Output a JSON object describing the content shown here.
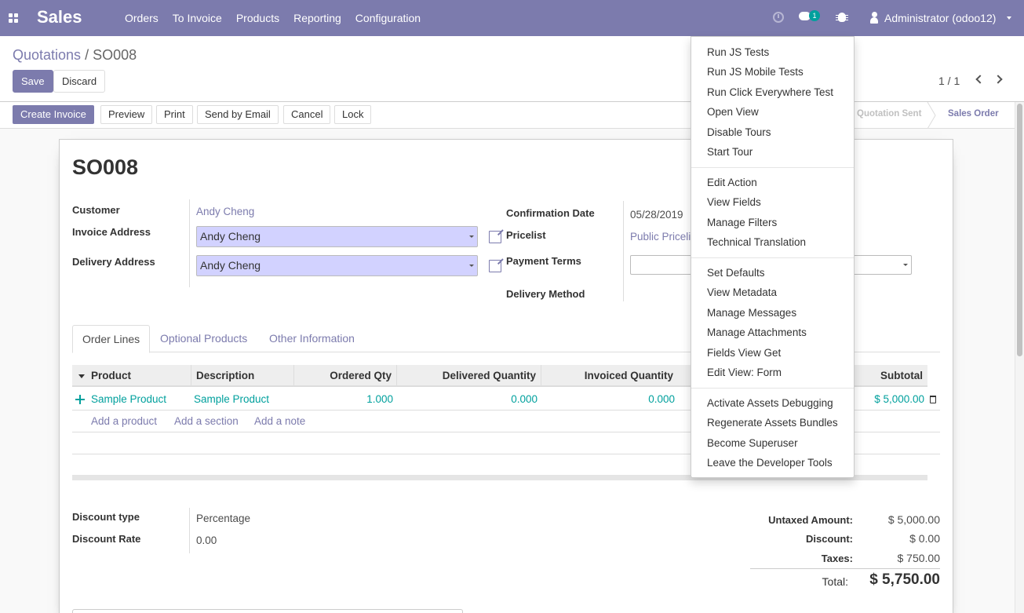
{
  "navbar": {
    "brand": "Sales",
    "menu": [
      "Orders",
      "To Invoice",
      "Products",
      "Reporting",
      "Configuration"
    ],
    "chat_count": "1",
    "user": "Administrator (odoo12)"
  },
  "breadcrumb": {
    "parent": "Quotations",
    "separator": "/",
    "current": "SO008"
  },
  "actions": {
    "save": "Save",
    "discard": "Discard"
  },
  "pager": {
    "value": "1 / 1"
  },
  "statusbar": {
    "buttons": [
      "Create Invoice",
      "Preview",
      "Print",
      "Send by Email",
      "Cancel",
      "Lock"
    ],
    "stages": [
      "Quotation Sent",
      "Sales Order"
    ],
    "active_stage": "Sales Order"
  },
  "form": {
    "title": "SO008",
    "customer_label": "Customer",
    "customer": "Andy Cheng",
    "invoice_address_label": "Invoice Address",
    "invoice_address": "Andy Cheng",
    "delivery_address_label": "Delivery Address",
    "delivery_address": "Andy Cheng",
    "confirmation_date_label": "Confirmation Date",
    "confirmation_date": "05/28/2019",
    "pricelist_label": "Pricelist",
    "pricelist": "Public Pricelist",
    "payment_terms_label": "Payment Terms",
    "delivery_method_label": "Delivery Method"
  },
  "tabs": [
    "Order Lines",
    "Optional Products",
    "Other Information"
  ],
  "order_lines": {
    "columns": [
      "Product",
      "Description",
      "Ordered Qty",
      "Delivered Quantity",
      "Invoiced Quantity",
      "Subtotal"
    ],
    "rows": [
      {
        "product": "Sample Product",
        "description": "Sample Product",
        "ordered_qty": "1.000",
        "delivered_qty": "0.000",
        "invoiced_qty": "0.000",
        "subtotal": "$ 5,000.00"
      }
    ],
    "add_links": [
      "Add a product",
      "Add a section",
      "Add a note"
    ]
  },
  "discount": {
    "type_label": "Discount type",
    "type_value": "Percentage",
    "rate_label": "Discount Rate",
    "rate_value": "0.00"
  },
  "totals": {
    "untaxed_label": "Untaxed Amount:",
    "untaxed": "$ 5,000.00",
    "discount_label": "Discount:",
    "discount": "$ 0.00",
    "taxes_label": "Taxes:",
    "taxes": "$ 750.00",
    "total_label": "Total:",
    "total": "$ 5,750.00"
  },
  "debug_menu": {
    "groups": [
      [
        "Run JS Tests",
        "Run JS Mobile Tests",
        "Run Click Everywhere Test",
        "Open View",
        "Disable Tours",
        "Start Tour"
      ],
      [
        "Edit Action",
        "View Fields",
        "Manage Filters",
        "Technical Translation"
      ],
      [
        "Set Defaults",
        "View Metadata",
        "Manage Messages",
        "Manage Attachments",
        "Fields View Get",
        "Edit View: Form"
      ],
      [
        "Activate Assets Debugging",
        "Regenerate Assets Bundles",
        "Become Superuser",
        "Leave the Developer Tools"
      ]
    ]
  },
  "colors": {
    "brand": "#7c7bad",
    "accent": "#00a09d",
    "many2one_bg": "#d2d2ff"
  }
}
